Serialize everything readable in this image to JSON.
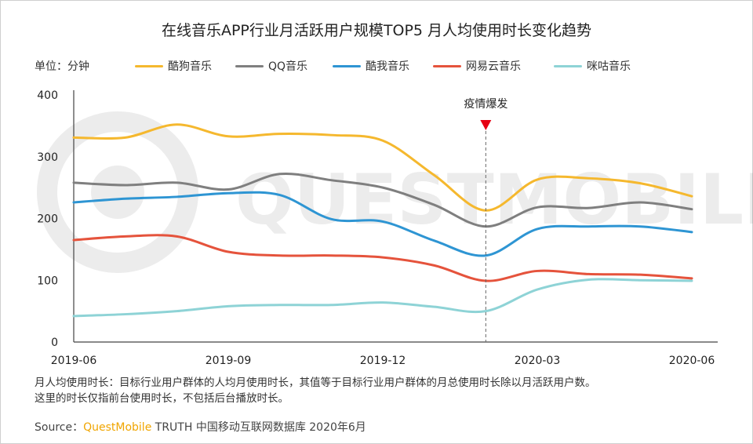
{
  "title": "在线音乐APP行业月活跃用户规模TOP5 月人均使用时长变化趋势",
  "unit_label": "单位：分钟",
  "annotation": "疫情爆发",
  "watermark": "QUESTMOBILE",
  "note_line1": "月人均使用时长：目标行业用户群体的人均月使用时长，其值等于目标行业用户群体的月总使用时长除以月活跃用户数。",
  "note_line2": "这里的时长仅指前台使用时长，不包括后台播放时长。",
  "source": {
    "prefix": "Source：",
    "brand": "QuestMobile",
    "rest": " TRUTH 中国移动互联网数据库 2020年6月"
  },
  "colors": {
    "kugou": "#F5B82E",
    "qq": "#7F7F7F",
    "kuwo": "#2E95D3",
    "netease": "#E5533C",
    "migu": "#8ED3D6",
    "marker": "#E60012"
  },
  "chart_data": {
    "type": "line",
    "x": [
      "2019-06",
      "2019-07",
      "2019-08",
      "2019-09",
      "2019-10",
      "2019-11",
      "2019-12",
      "2020-01",
      "2020-02",
      "2020-03",
      "2020-04",
      "2020-05",
      "2020-06"
    ],
    "x_tick_labels": [
      "2019-06",
      "2019-09",
      "2019-12",
      "2020-03",
      "2020-06"
    ],
    "y_ticks": [
      0,
      100,
      200,
      300,
      400
    ],
    "ylim": [
      0,
      400
    ],
    "annotation_x": "2020-02",
    "series": [
      {
        "name": "酷狗音乐",
        "color_key": "kugou",
        "values": [
          331,
          331,
          352,
          333,
          337,
          335,
          326,
          270,
          213,
          263,
          265,
          257,
          236
        ]
      },
      {
        "name": "QQ音乐",
        "color_key": "qq",
        "values": [
          258,
          254,
          258,
          247,
          272,
          262,
          250,
          222,
          187,
          218,
          217,
          226,
          215
        ]
      },
      {
        "name": "酷我音乐",
        "color_key": "kuwo",
        "values": [
          226,
          232,
          235,
          241,
          238,
          199,
          195,
          164,
          140,
          183,
          187,
          187,
          178
        ]
      },
      {
        "name": "网易云音乐",
        "color_key": "netease",
        "values": [
          165,
          171,
          171,
          146,
          140,
          140,
          137,
          124,
          99,
          115,
          110,
          109,
          103
        ]
      },
      {
        "name": "咪咕音乐",
        "color_key": "migu",
        "values": [
          42,
          45,
          50,
          58,
          60,
          60,
          64,
          57,
          50,
          85,
          101,
          100,
          99
        ]
      }
    ]
  }
}
